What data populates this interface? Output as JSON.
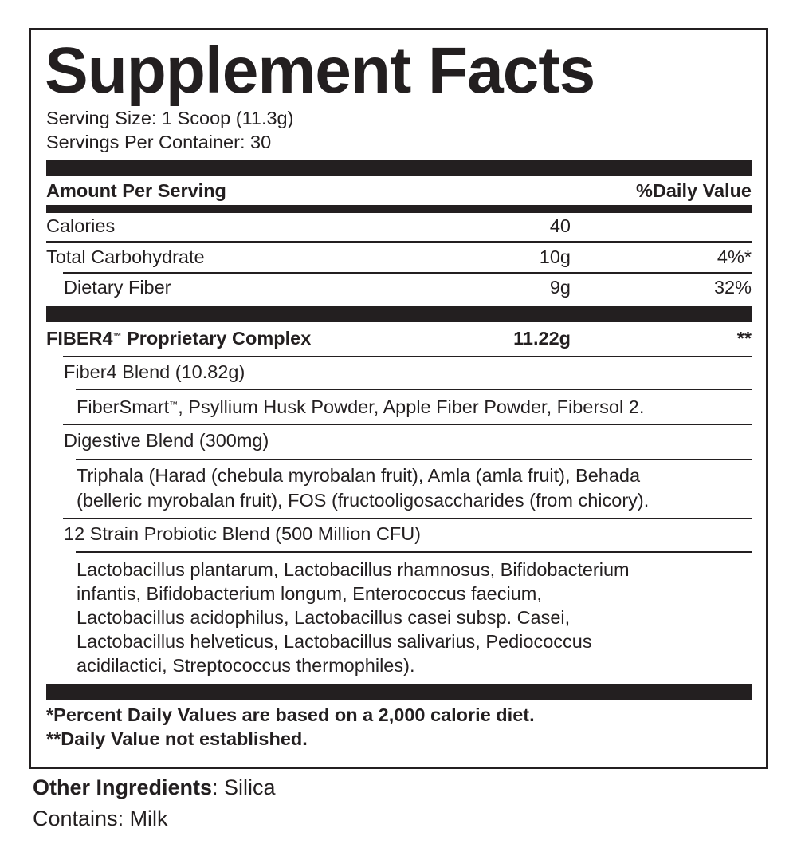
{
  "title": "Supplement Facts",
  "serving_size": "Serving Size: 1 Scoop (11.3g)",
  "servings_per_container": "Servings Per Container: 30",
  "header": {
    "amount": "Amount Per Serving",
    "dv": "%Daily Value"
  },
  "nutrients": [
    {
      "name": "Calories",
      "amount": "40",
      "dv": ""
    },
    {
      "name": "Total Carbohydrate",
      "amount": "10g",
      "dv": "4%*"
    },
    {
      "name": "Dietary Fiber",
      "amount": "9g",
      "dv": "32%"
    }
  ],
  "complex": {
    "name": "FIBER4",
    "tm": "™",
    "name_rest": " Proprietary Complex",
    "amount": "11.22g",
    "dv": "**"
  },
  "blends": [
    {
      "name": "Fiber4 Blend (10.82g)",
      "ingredients": [
        "FiberSmart",
        "™",
        ", Psyllium Husk Powder, Apple Fiber Powder, Fibersol 2."
      ]
    },
    {
      "name": "Digestive Blend (300mg)",
      "ingredients": [
        "Triphala (Harad (chebula myrobalan fruit), Amla (amla fruit), Behada",
        "(belleric myrobalan fruit), FOS (fructooligosaccharides (from chicory)."
      ]
    },
    {
      "name": "12 Strain Probiotic Blend (500 Million CFU)",
      "ingredients": [
        "Lactobacillus plantarum, Lactobacillus rhamnosus, Bifidobacterium",
        "infantis, Bifidobacterium longum, Enterococcus faecium,",
        "Lactobacillus acidophilus, Lactobacillus casei subsp. Casei,",
        "Lactobacillus helveticus, Lactobacillus salivarius, Pediococcus",
        "acidilactici, Streptococcus thermophiles)."
      ]
    }
  ],
  "footnotes": [
    "*Percent Daily Values are based on a 2,000 calorie diet.",
    "**Daily Value not established."
  ],
  "other_ingredients": {
    "label": "Other Ingredients",
    "value": ": Silica"
  },
  "contains": "Contains: Milk"
}
